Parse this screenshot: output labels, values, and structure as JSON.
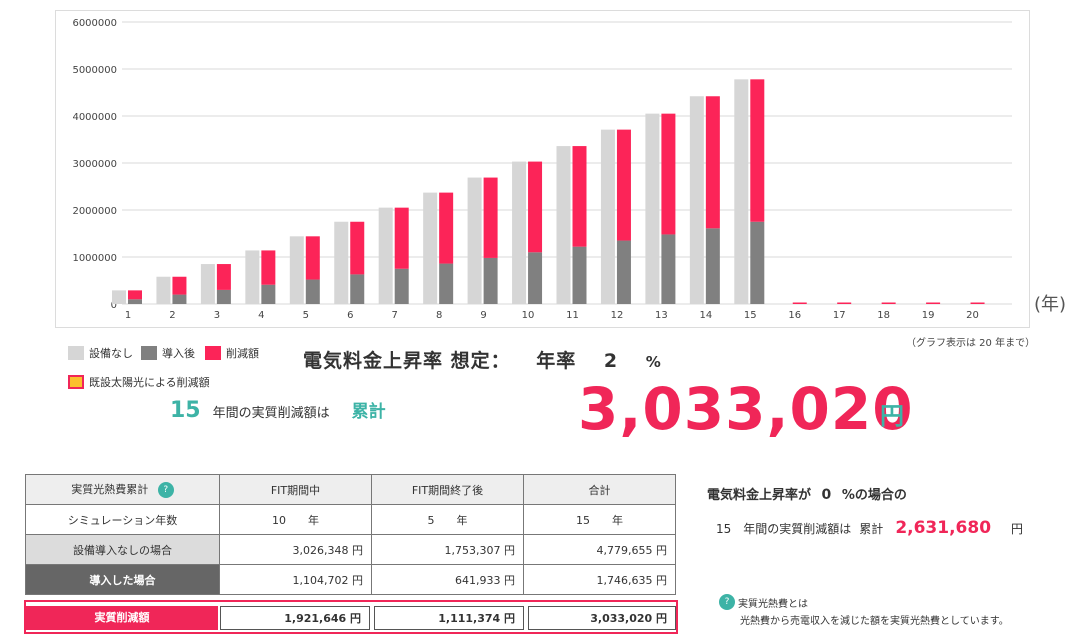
{
  "chart_data": {
    "type": "bar",
    "categories": [
      "1",
      "2",
      "3",
      "4",
      "5",
      "6",
      "7",
      "8",
      "9",
      "10",
      "11",
      "12",
      "13",
      "14",
      "15",
      "16",
      "17",
      "18",
      "19",
      "20"
    ],
    "series": [
      {
        "name": "設備なし",
        "values": [
          290000,
          580000,
          850000,
          1140000,
          1440000,
          1750000,
          2050000,
          2370000,
          2690000,
          3030000,
          3360000,
          3710000,
          4050000,
          4420000,
          4780000,
          0,
          0,
          0,
          0,
          0
        ]
      },
      {
        "name": "導入後",
        "values": [
          100000,
          200000,
          300000,
          410000,
          520000,
          630000,
          750000,
          860000,
          980000,
          1100000,
          1220000,
          1350000,
          1480000,
          1610000,
          1750000,
          0,
          0,
          0,
          0,
          0
        ]
      },
      {
        "name": "削減額",
        "values": [
          190000,
          380000,
          550000,
          730000,
          920000,
          1120000,
          1300000,
          1510000,
          1710000,
          1930000,
          2140000,
          2360000,
          2570000,
          2810000,
          3030000,
          0,
          0,
          0,
          0,
          0
        ]
      }
    ],
    "yticks": [
      "0",
      "1000000",
      "2000000",
      "3000000",
      "4000000",
      "5000000",
      "6000000"
    ],
    "ylim": [
      0,
      6000000
    ],
    "x_unit": "(年)",
    "grid": true
  },
  "colors": {
    "none": "#d6d6d6",
    "after": "#808080",
    "saving": "#fc2458",
    "existing_solar": "#fbc02d",
    "teal": "#3db3a6",
    "pink": "#f02658"
  },
  "note_graph": "（グラフ表示は 20 年まで）",
  "legend": {
    "none": "設備なし",
    "after": "導入後",
    "saving": "削減額",
    "existing_solar": "既設太陽光による削減額"
  },
  "rate": {
    "label": "電気料金上昇率 想定：",
    "rate_word": "年率",
    "value": "2",
    "unit": "%"
  },
  "years_line": {
    "years": "15",
    "text": "年間の実質削減額は",
    "cumulative": "累計"
  },
  "big_total": {
    "value": "3,033,020",
    "unit": "円"
  },
  "table": {
    "header": [
      "実質光熱費累計",
      "FIT期間中",
      "FIT期間終了後",
      "合計"
    ],
    "help_icon": "?",
    "rows": [
      {
        "label": "シミュレーション年数",
        "values": [
          "10　　年",
          "5　　年",
          "15　　年"
        ]
      },
      {
        "label": "設備導入なしの場合",
        "values": [
          "3,026,348 円",
          "1,753,307 円",
          "4,779,655 円"
        ]
      },
      {
        "label": "導入した場合",
        "values": [
          "1,104,702 円",
          "641,933 円",
          "1,746,635 円"
        ]
      }
    ],
    "savings": {
      "label": "実質削減額",
      "values": [
        "1,921,646 円",
        "1,111,374 円",
        "3,033,020 円"
      ]
    }
  },
  "zero_rate": {
    "title_a": "電気料金上昇率が",
    "rate": "0",
    "title_b": "%の場合の",
    "years": "15",
    "text": "年間の実質削減額は",
    "cumulative": "累計",
    "total": "2,631,680",
    "unit": "円"
  },
  "definition": {
    "icon": "?",
    "title": "実質光熱費とは",
    "body": "光熱費から売電収入を減じた額を実質光熱費としています。"
  }
}
